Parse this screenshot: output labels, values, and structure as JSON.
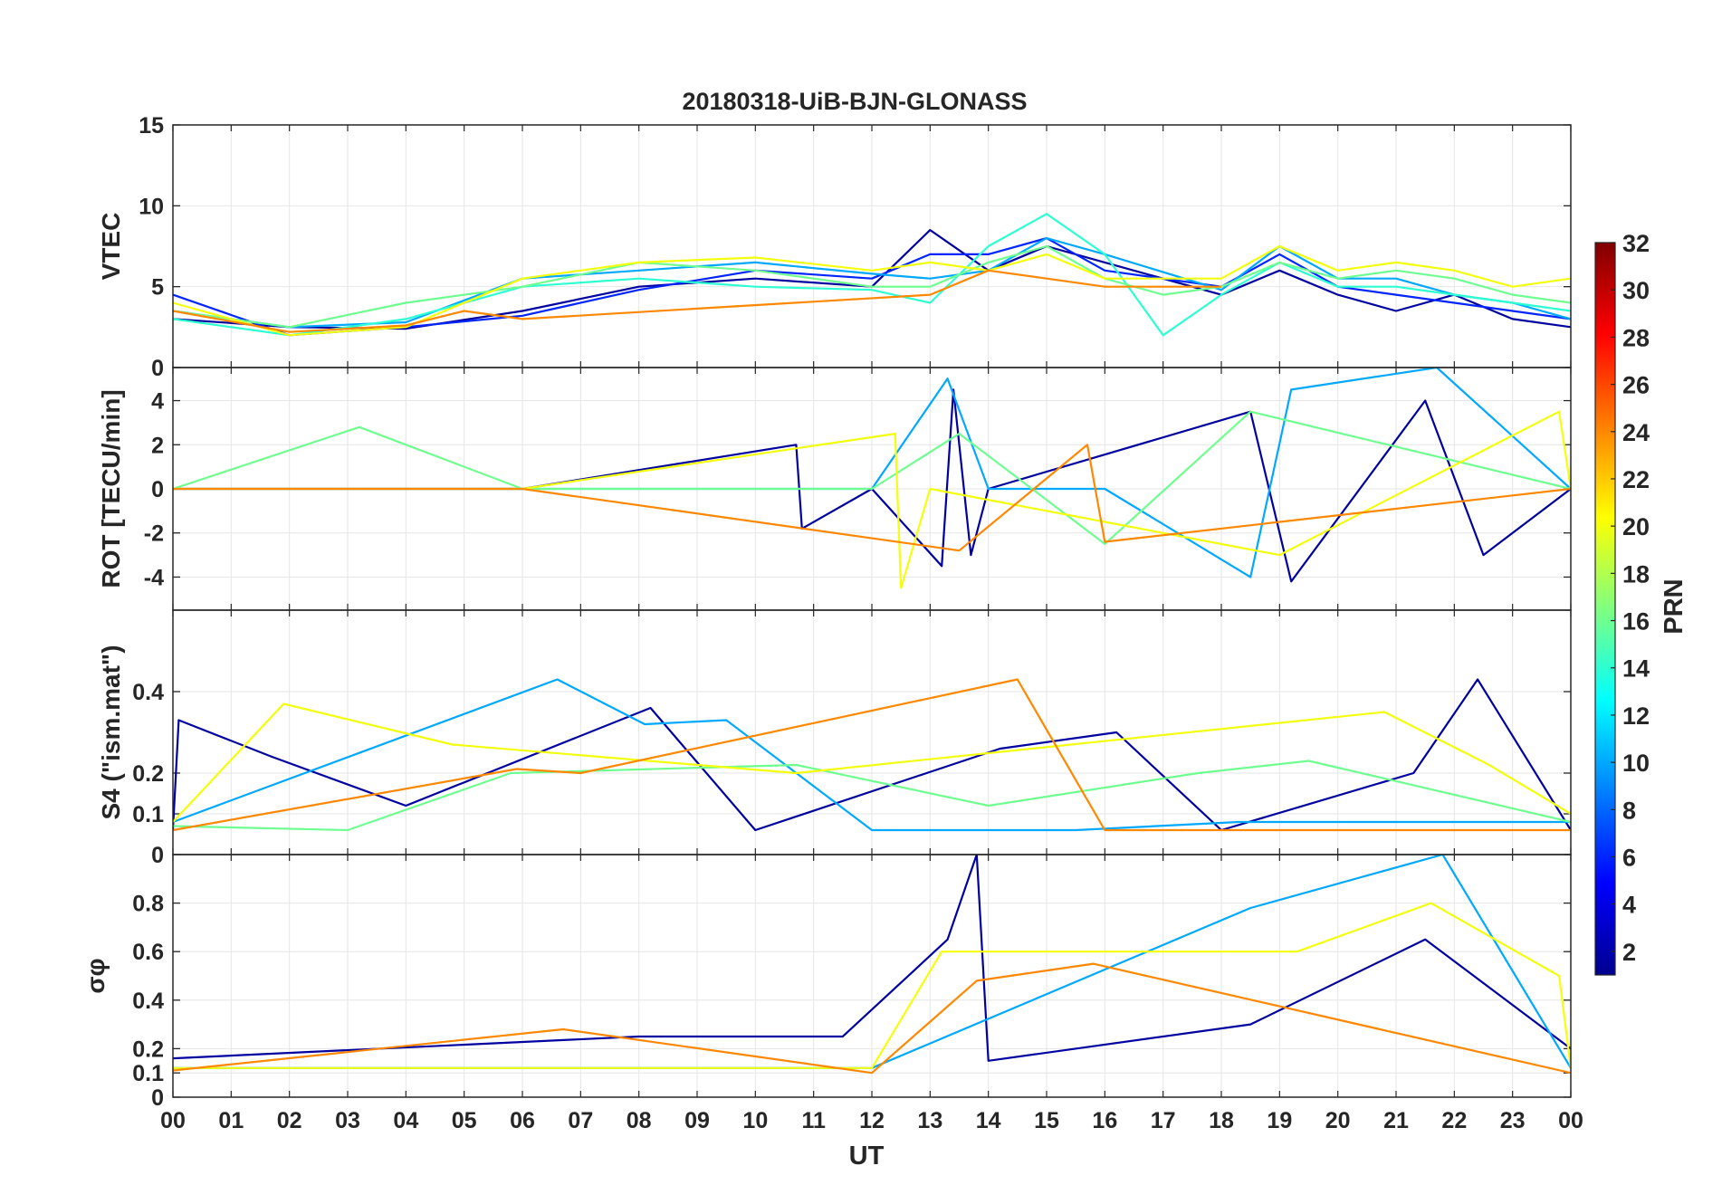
{
  "title": "20180318-UiB-BJN-GLONASS",
  "x_axis": {
    "label": "UT",
    "range": [
      0,
      24
    ],
    "tick_labels": [
      "00",
      "01",
      "02",
      "03",
      "04",
      "05",
      "06",
      "07",
      "08",
      "09",
      "10",
      "11",
      "12",
      "13",
      "14",
      "15",
      "16",
      "17",
      "18",
      "19",
      "20",
      "21",
      "22",
      "23",
      "00"
    ]
  },
  "colorbar": {
    "label": "PRN",
    "range": [
      1,
      32
    ],
    "tick_values": [
      2,
      4,
      6,
      8,
      10,
      12,
      14,
      16,
      18,
      20,
      22,
      24,
      26,
      28,
      30,
      32
    ],
    "tick_labels": [
      "2",
      "4",
      "6",
      "8",
      "10",
      "12",
      "14",
      "16",
      "18",
      "20",
      "22",
      "24",
      "26",
      "28",
      "30",
      "32"
    ],
    "colormap": "jet"
  },
  "chart_data": [
    {
      "type": "line",
      "panel": "VTEC",
      "ylabel": "VTEC",
      "ylim": [
        0,
        15
      ],
      "yticks": [
        0,
        5,
        10,
        15
      ],
      "ytick_labels": [
        "0",
        "5",
        "10",
        "15"
      ],
      "grid": true,
      "series": [
        {
          "name": "PRN 2",
          "prn": 2,
          "x": [
            0,
            2,
            4,
            6,
            8,
            10,
            12,
            13,
            14,
            15,
            16,
            18,
            19,
            20,
            21,
            22,
            23,
            24
          ],
          "values": [
            3.0,
            2.5,
            2.4,
            3.5,
            5.0,
            5.5,
            5.0,
            8.5,
            6.0,
            7.5,
            6.5,
            4.5,
            6.0,
            4.5,
            3.5,
            4.5,
            3.0,
            2.5
          ]
        },
        {
          "name": "PRN 6",
          "prn": 6,
          "x": [
            0,
            2,
            4,
            6,
            8,
            10,
            12,
            13,
            14,
            15,
            16,
            18,
            19,
            20,
            21,
            22,
            23,
            24
          ],
          "values": [
            4.5,
            2.0,
            2.5,
            3.2,
            4.8,
            6.0,
            5.5,
            7.0,
            7.0,
            8.0,
            6.0,
            5.0,
            7.0,
            5.0,
            4.5,
            4.0,
            3.5,
            3.0
          ]
        },
        {
          "name": "PRN 10",
          "prn": 10,
          "x": [
            0,
            2,
            4,
            6,
            8,
            10,
            12,
            13,
            14,
            15,
            16,
            18,
            19,
            20,
            21,
            22,
            23,
            24
          ],
          "values": [
            3.5,
            2.5,
            2.8,
            5.5,
            6.0,
            6.5,
            5.8,
            5.5,
            6.0,
            8.0,
            7.0,
            4.8,
            7.5,
            5.5,
            5.5,
            4.5,
            4.0,
            3.0
          ]
        },
        {
          "name": "PRN 14",
          "prn": 14,
          "x": [
            0,
            2,
            4,
            6,
            8,
            10,
            12,
            13,
            14,
            15,
            16,
            17,
            18,
            19,
            20,
            21,
            22,
            23,
            24
          ],
          "values": [
            3.0,
            2.0,
            3.0,
            5.0,
            5.5,
            5.0,
            4.8,
            4.0,
            7.5,
            9.5,
            7.0,
            2.0,
            4.5,
            6.5,
            5.0,
            5.0,
            4.5,
            4.0,
            3.5
          ]
        },
        {
          "name": "PRN 16",
          "prn": 16,
          "x": [
            0,
            2,
            4,
            6,
            8,
            10,
            12,
            13,
            14,
            15,
            16,
            17,
            18,
            19,
            20,
            21,
            22,
            23,
            24
          ],
          "values": [
            3.5,
            2.5,
            4.0,
            5.0,
            6.5,
            6.0,
            5.0,
            5.0,
            6.5,
            7.5,
            5.5,
            4.5,
            5.0,
            6.5,
            5.5,
            6.0,
            5.5,
            4.5,
            4.0
          ]
        },
        {
          "name": "PRN 20",
          "prn": 20,
          "x": [
            0,
            2,
            4,
            6,
            8,
            10,
            12,
            13,
            14,
            15,
            16,
            18,
            19,
            20,
            21,
            22,
            23,
            24
          ],
          "values": [
            4.0,
            2.0,
            2.5,
            5.5,
            6.5,
            6.8,
            6.0,
            6.5,
            6.0,
            7.0,
            5.5,
            5.5,
            7.5,
            6.0,
            6.5,
            6.0,
            5.0,
            5.5
          ]
        },
        {
          "name": "PRN 24",
          "prn": 24,
          "x": [
            0,
            2,
            4,
            5,
            6,
            13,
            14,
            15,
            16,
            18
          ],
          "values": [
            3.5,
            2.2,
            2.6,
            3.5,
            3.0,
            4.5,
            6.0,
            5.5,
            5.0,
            5.0
          ]
        }
      ]
    },
    {
      "type": "line",
      "panel": "ROT",
      "ylabel": "ROT [TECU/min]",
      "ylim": [
        -5.5,
        5.5
      ],
      "yticks": [
        -4,
        -2,
        0,
        2,
        4
      ],
      "ytick_labels": [
        "-4",
        "-2",
        "0",
        "2",
        "4"
      ],
      "grid": true,
      "series": [
        {
          "name": "PRN 2",
          "prn": 2,
          "x": [
            0,
            6,
            10.7,
            10.8,
            12,
            13.2,
            13.4,
            13.7,
            14,
            18.5,
            19.2,
            21.5,
            22.5,
            24
          ],
          "values": [
            0,
            0,
            2.0,
            -1.8,
            0,
            -3.5,
            4.5,
            -3.0,
            0,
            3.5,
            -4.2,
            4.0,
            -3.0,
            0
          ]
        },
        {
          "name": "PRN 10",
          "prn": 10,
          "x": [
            0,
            6,
            12,
            13.3,
            14,
            16,
            18.5,
            19.2,
            21.7,
            24
          ],
          "values": [
            0,
            0,
            0,
            5.0,
            0,
            0,
            -4.0,
            4.5,
            5.5,
            0
          ]
        },
        {
          "name": "PRN 16",
          "prn": 16,
          "x": [
            0,
            3.2,
            6,
            12,
            13.5,
            16,
            18.5,
            24
          ],
          "values": [
            0,
            2.8,
            0,
            0,
            2.5,
            -2.5,
            3.5,
            0
          ]
        },
        {
          "name": "PRN 20",
          "prn": 20,
          "x": [
            0,
            6,
            12.4,
            12.5,
            13,
            19,
            23.8,
            24
          ],
          "values": [
            0,
            0,
            2.5,
            -4.5,
            0,
            -3.0,
            3.5,
            0
          ]
        },
        {
          "name": "PRN 24",
          "prn": 24,
          "x": [
            0,
            6,
            13.5,
            15.7,
            16,
            24
          ],
          "values": [
            0,
            0,
            -2.8,
            2.0,
            -2.4,
            0
          ]
        }
      ]
    },
    {
      "type": "line",
      "panel": "S4",
      "ylabel": "S4 (\"ism.mat\")",
      "ylim": [
        0,
        0.6
      ],
      "yticks": [
        0,
        0.1,
        0.2,
        0.4
      ],
      "ytick_labels": [
        "0",
        "0.1",
        "0.2",
        "0.4"
      ],
      "grid": true,
      "series": [
        {
          "name": "PRN 2",
          "prn": 2,
          "x": [
            0,
            0.1,
            1.7,
            4,
            8.2,
            10,
            14.2,
            16.2,
            18,
            21.3,
            22.4,
            24
          ],
          "values": [
            0.06,
            0.33,
            0.24,
            0.12,
            0.36,
            0.06,
            0.26,
            0.3,
            0.06,
            0.2,
            0.43,
            0.06
          ]
        },
        {
          "name": "PRN 10",
          "prn": 10,
          "x": [
            0,
            6.6,
            8.1,
            9.5,
            12,
            15.5,
            18.3,
            24
          ],
          "values": [
            0.08,
            0.43,
            0.32,
            0.33,
            0.06,
            0.06,
            0.08,
            0.08
          ]
        },
        {
          "name": "PRN 16",
          "prn": 16,
          "x": [
            0,
            3,
            5.8,
            10.7,
            14,
            17.6,
            19.5,
            24
          ],
          "values": [
            0.07,
            0.06,
            0.2,
            0.22,
            0.12,
            0.2,
            0.23,
            0.08
          ]
        },
        {
          "name": "PRN 20",
          "prn": 20,
          "x": [
            0,
            1.9,
            4.8,
            10.7,
            20.8,
            22.6,
            24
          ],
          "values": [
            0.08,
            0.37,
            0.27,
            0.2,
            0.35,
            0.22,
            0.1
          ]
        },
        {
          "name": "PRN 24",
          "prn": 24,
          "x": [
            0,
            5.9,
            7.0,
            14.5,
            16,
            24
          ],
          "values": [
            0.06,
            0.21,
            0.2,
            0.43,
            0.06,
            0.06
          ]
        }
      ]
    },
    {
      "type": "line",
      "panel": "sigma_phi",
      "ylabel": "σφ",
      "ylim": [
        0,
        1
      ],
      "yticks": [
        0,
        0.1,
        0.2,
        0.4,
        0.6,
        0.8
      ],
      "ytick_labels": [
        "0",
        "0.1",
        "0.2",
        "0.4",
        "0.6",
        "0.8"
      ],
      "grid": true,
      "series": [
        {
          "name": "PRN 2",
          "prn": 2,
          "x": [
            0,
            8,
            11.5,
            13.3,
            13.8,
            14,
            18.5,
            21.5,
            24
          ],
          "values": [
            0.16,
            0.25,
            0.25,
            0.65,
            1.0,
            0.15,
            0.3,
            0.65,
            0.2
          ]
        },
        {
          "name": "PRN 10",
          "prn": 10,
          "x": [
            0,
            12,
            18.5,
            21.8,
            24
          ],
          "values": [
            0.12,
            0.12,
            0.78,
            1.0,
            0.12
          ]
        },
        {
          "name": "PRN 20",
          "prn": 20,
          "x": [
            0,
            12,
            13.2,
            19.3,
            21.6,
            23.8,
            24
          ],
          "values": [
            0.12,
            0.12,
            0.6,
            0.6,
            0.8,
            0.5,
            0.12
          ]
        },
        {
          "name": "PRN 24",
          "prn": 24,
          "x": [
            0,
            6.7,
            12,
            13.8,
            15.8,
            24
          ],
          "values": [
            0.11,
            0.28,
            0.1,
            0.48,
            0.55,
            0.1
          ]
        }
      ]
    }
  ]
}
